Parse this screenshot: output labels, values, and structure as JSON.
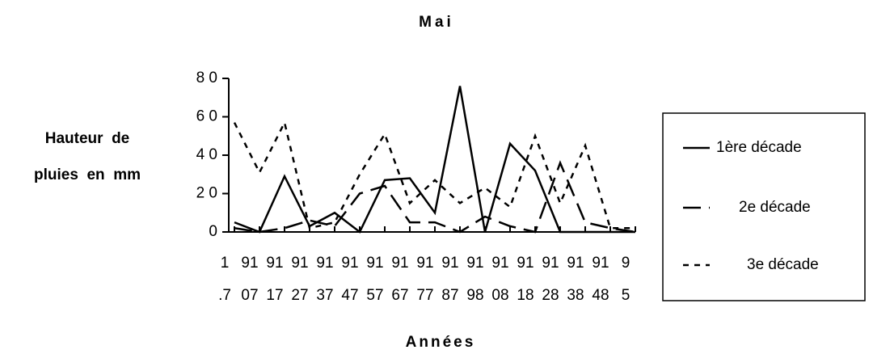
{
  "chart_data": {
    "type": "line",
    "title": "Mai",
    "y_label": [
      "Hauteur  de",
      "pluies  en  mm"
    ],
    "x_label": "Années",
    "categories": [
      [
        "1",
        ".7"
      ],
      [
        "91",
        "07"
      ],
      [
        "91",
        "17"
      ],
      [
        "91",
        "27"
      ],
      [
        "91",
        "37"
      ],
      [
        "91",
        "47"
      ],
      [
        "91",
        "57"
      ],
      [
        "91",
        "67"
      ],
      [
        "91",
        "77"
      ],
      [
        "91",
        "87"
      ],
      [
        "91",
        "98"
      ],
      [
        "91",
        "08"
      ],
      [
        "91",
        "18"
      ],
      [
        "91",
        "28"
      ],
      [
        "91",
        "38"
      ],
      [
        "91",
        "48"
      ],
      [
        "9",
        "5"
      ]
    ],
    "ylim": [
      0,
      80
    ],
    "yticks": [
      0,
      {
        "value": 20,
        "label": "2 0"
      },
      {
        "value": 40,
        "label": "4 0"
      },
      {
        "value": 60,
        "label": "6 0"
      },
      {
        "value": 80,
        "label": "8 0"
      }
    ],
    "series": [
      {
        "name": "1ère décade",
        "color": "#000000",
        "dash": "solid",
        "values": [
          5,
          0,
          29,
          3,
          10,
          0,
          27,
          28,
          10,
          76,
          0,
          46,
          32,
          0,
          0,
          0,
          0
        ]
      },
      {
        "name": "2e décade",
        "color": "#000000",
        "dash": "long",
        "values": [
          2,
          0,
          2,
          6,
          3,
          20,
          24,
          5,
          5,
          0,
          8,
          3,
          0,
          36,
          5,
          2,
          0
        ]
      },
      {
        "name": "3e décade",
        "color": "#000000",
        "dash": "short",
        "values": [
          57,
          31,
          57,
          2,
          5,
          30,
          51,
          15,
          27,
          15,
          23,
          13,
          50,
          15,
          45,
          2,
          2
        ]
      }
    ],
    "legend": "right"
  }
}
